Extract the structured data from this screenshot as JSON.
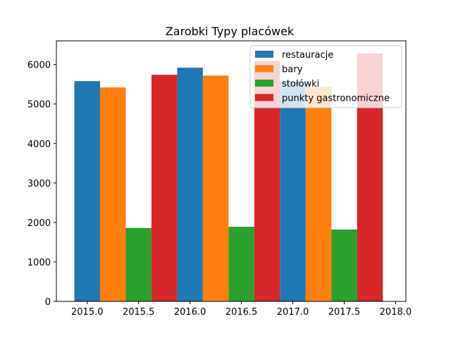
{
  "chart_data": {
    "type": "bar",
    "title": "Zarobki Typy placówek",
    "xlabel": "",
    "ylabel": "",
    "categories": [
      2015,
      2016,
      2017
    ],
    "series": [
      {
        "name": "restauracje",
        "color": "#1f77b4",
        "values": [
          5580,
          5920,
          5570
        ]
      },
      {
        "name": "bary",
        "color": "#ff7f0e",
        "values": [
          5420,
          5720,
          5440
        ]
      },
      {
        "name": "stołówki",
        "color": "#2ca02c",
        "values": [
          1860,
          1890,
          1820
        ]
      },
      {
        "name": "punkty gastronomiczne",
        "color": "#d62728",
        "values": [
          5740,
          6090,
          6280
        ]
      }
    ],
    "xlim": [
      2014.7,
      2018.1
    ],
    "ylim": [
      0,
      6600
    ],
    "xticks": [
      "2015.0",
      "2015.5",
      "2016.0",
      "2016.5",
      "2017.0",
      "2017.5",
      "2018.0"
    ],
    "yticks": [
      "0",
      "1000",
      "2000",
      "3000",
      "4000",
      "5000",
      "6000"
    ],
    "legend_position": "top-right",
    "grid": false
  }
}
